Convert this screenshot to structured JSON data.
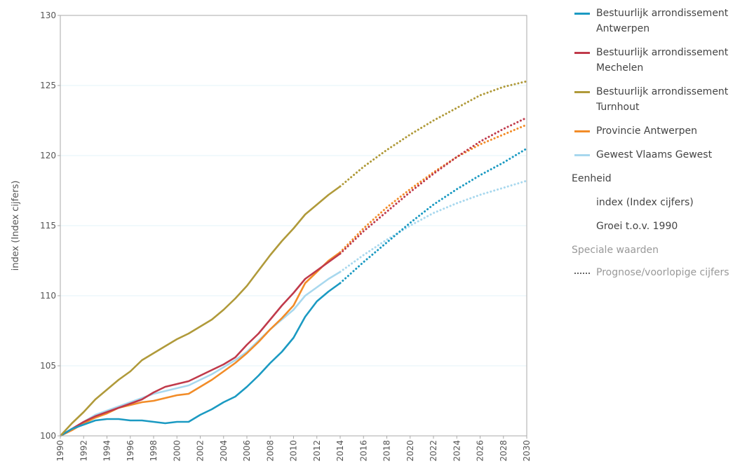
{
  "chart_data": {
    "type": "line",
    "ylabel": "index (Index cijfers)",
    "xlim": [
      1990,
      2030
    ],
    "ylim": [
      100,
      130
    ],
    "yticks": [
      100,
      105,
      110,
      115,
      120,
      125,
      130
    ],
    "xticks": [
      1990,
      1992,
      1994,
      1996,
      1998,
      2000,
      2002,
      2004,
      2006,
      2008,
      2010,
      2012,
      2014,
      2016,
      2018,
      2020,
      2022,
      2024,
      2026,
      2028,
      2030
    ],
    "grid": "horizontal",
    "legend_position": "right",
    "forecast_from": 2014,
    "series": [
      {
        "name": "Bestuurlijk arrondissement Antwerpen",
        "color": "#1b9ac2",
        "x": [
          1990,
          1991,
          1992,
          1993,
          1994,
          1995,
          1996,
          1997,
          1998,
          1999,
          2000,
          2001,
          2002,
          2003,
          2004,
          2005,
          2006,
          2007,
          2008,
          2009,
          2010,
          2011,
          2012,
          2013,
          2014,
          2016,
          2018,
          2020,
          2022,
          2024,
          2026,
          2028,
          2030
        ],
        "y": [
          100,
          100.5,
          100.8,
          101.1,
          101.2,
          101.2,
          101.1,
          101.1,
          101.0,
          100.9,
          101.0,
          101.0,
          101.5,
          101.9,
          102.4,
          102.8,
          103.5,
          104.3,
          105.2,
          106.0,
          107.0,
          108.5,
          109.6,
          110.3,
          110.9,
          112.4,
          113.8,
          115.2,
          116.5,
          117.6,
          118.6,
          119.5,
          120.5
        ]
      },
      {
        "name": "Bestuurlijk arrondissement Mechelen",
        "color": "#c03a4b",
        "x": [
          1990,
          1991,
          1992,
          1993,
          1994,
          1995,
          1996,
          1997,
          1998,
          1999,
          2000,
          2001,
          2002,
          2003,
          2004,
          2005,
          2006,
          2007,
          2008,
          2009,
          2010,
          2011,
          2012,
          2013,
          2014,
          2016,
          2018,
          2020,
          2022,
          2024,
          2026,
          2028,
          2030
        ],
        "y": [
          100,
          100.5,
          101.0,
          101.4,
          101.7,
          102.0,
          102.3,
          102.6,
          103.1,
          103.5,
          103.7,
          103.9,
          104.3,
          104.7,
          105.1,
          105.6,
          106.5,
          107.3,
          108.3,
          109.3,
          110.2,
          111.2,
          111.8,
          112.4,
          113.0,
          114.6,
          116.0,
          117.4,
          118.7,
          119.9,
          121.0,
          121.9,
          122.7
        ]
      },
      {
        "name": "Bestuurlijk arrondissement Turnhout",
        "color": "#b09a3a",
        "x": [
          1990,
          1991,
          1992,
          1993,
          1994,
          1995,
          1996,
          1997,
          1998,
          1999,
          2000,
          2001,
          2002,
          2003,
          2004,
          2005,
          2006,
          2007,
          2008,
          2009,
          2010,
          2011,
          2012,
          2013,
          2014,
          2016,
          2018,
          2020,
          2022,
          2024,
          2026,
          2028,
          2030
        ],
        "y": [
          100,
          100.9,
          101.7,
          102.6,
          103.3,
          104.0,
          104.6,
          105.4,
          105.9,
          106.4,
          106.9,
          107.3,
          107.8,
          108.3,
          109.0,
          109.8,
          110.7,
          111.8,
          112.9,
          113.9,
          114.8,
          115.8,
          116.5,
          117.2,
          117.8,
          119.2,
          120.4,
          121.5,
          122.5,
          123.4,
          124.3,
          124.9,
          125.3
        ]
      },
      {
        "name": "Provincie Antwerpen",
        "color": "#f28c28",
        "x": [
          1990,
          1991,
          1992,
          1993,
          1994,
          1995,
          1996,
          1997,
          1998,
          1999,
          2000,
          2001,
          2002,
          2003,
          2004,
          2005,
          2006,
          2007,
          2008,
          2009,
          2010,
          2011,
          2012,
          2013,
          2014,
          2016,
          2018,
          2020,
          2022,
          2024,
          2026,
          2028,
          2030
        ],
        "y": [
          100,
          100.4,
          100.9,
          101.3,
          101.6,
          102.0,
          102.2,
          102.4,
          102.5,
          102.7,
          102.9,
          103.0,
          103.5,
          104.0,
          104.6,
          105.2,
          105.9,
          106.7,
          107.6,
          108.4,
          109.3,
          110.9,
          111.7,
          112.5,
          113.1,
          114.8,
          116.3,
          117.6,
          118.8,
          119.9,
          120.8,
          121.5,
          122.2
        ]
      },
      {
        "name": "Gewest Vlaams Gewest",
        "color": "#a8d8ee",
        "x": [
          1990,
          1991,
          1992,
          1993,
          1994,
          1995,
          1996,
          1997,
          1998,
          1999,
          2000,
          2001,
          2002,
          2003,
          2004,
          2005,
          2006,
          2007,
          2008,
          2009,
          2010,
          2011,
          2012,
          2013,
          2014,
          2016,
          2018,
          2020,
          2022,
          2024,
          2026,
          2028,
          2030
        ],
        "y": [
          100,
          100.5,
          101.0,
          101.5,
          101.8,
          102.1,
          102.4,
          102.7,
          103.0,
          103.2,
          103.4,
          103.6,
          104.0,
          104.4,
          104.9,
          105.4,
          106.0,
          106.8,
          107.6,
          108.3,
          109.0,
          110.0,
          110.6,
          111.2,
          111.7,
          112.9,
          114.0,
          115.0,
          115.9,
          116.6,
          117.2,
          117.7,
          118.2
        ]
      }
    ]
  },
  "legend": {
    "unit_title": "Eenheid",
    "unit_lines": [
      "index (Index cijfers)",
      "Groei t.o.v. 1990"
    ],
    "special_title": "Speciale waarden",
    "special_item": "Prognose/voorlopige cijfers"
  },
  "colors": {
    "axis": "#aaaaaa",
    "grid": "#e3f3f8",
    "forecast_style": "dotted"
  }
}
